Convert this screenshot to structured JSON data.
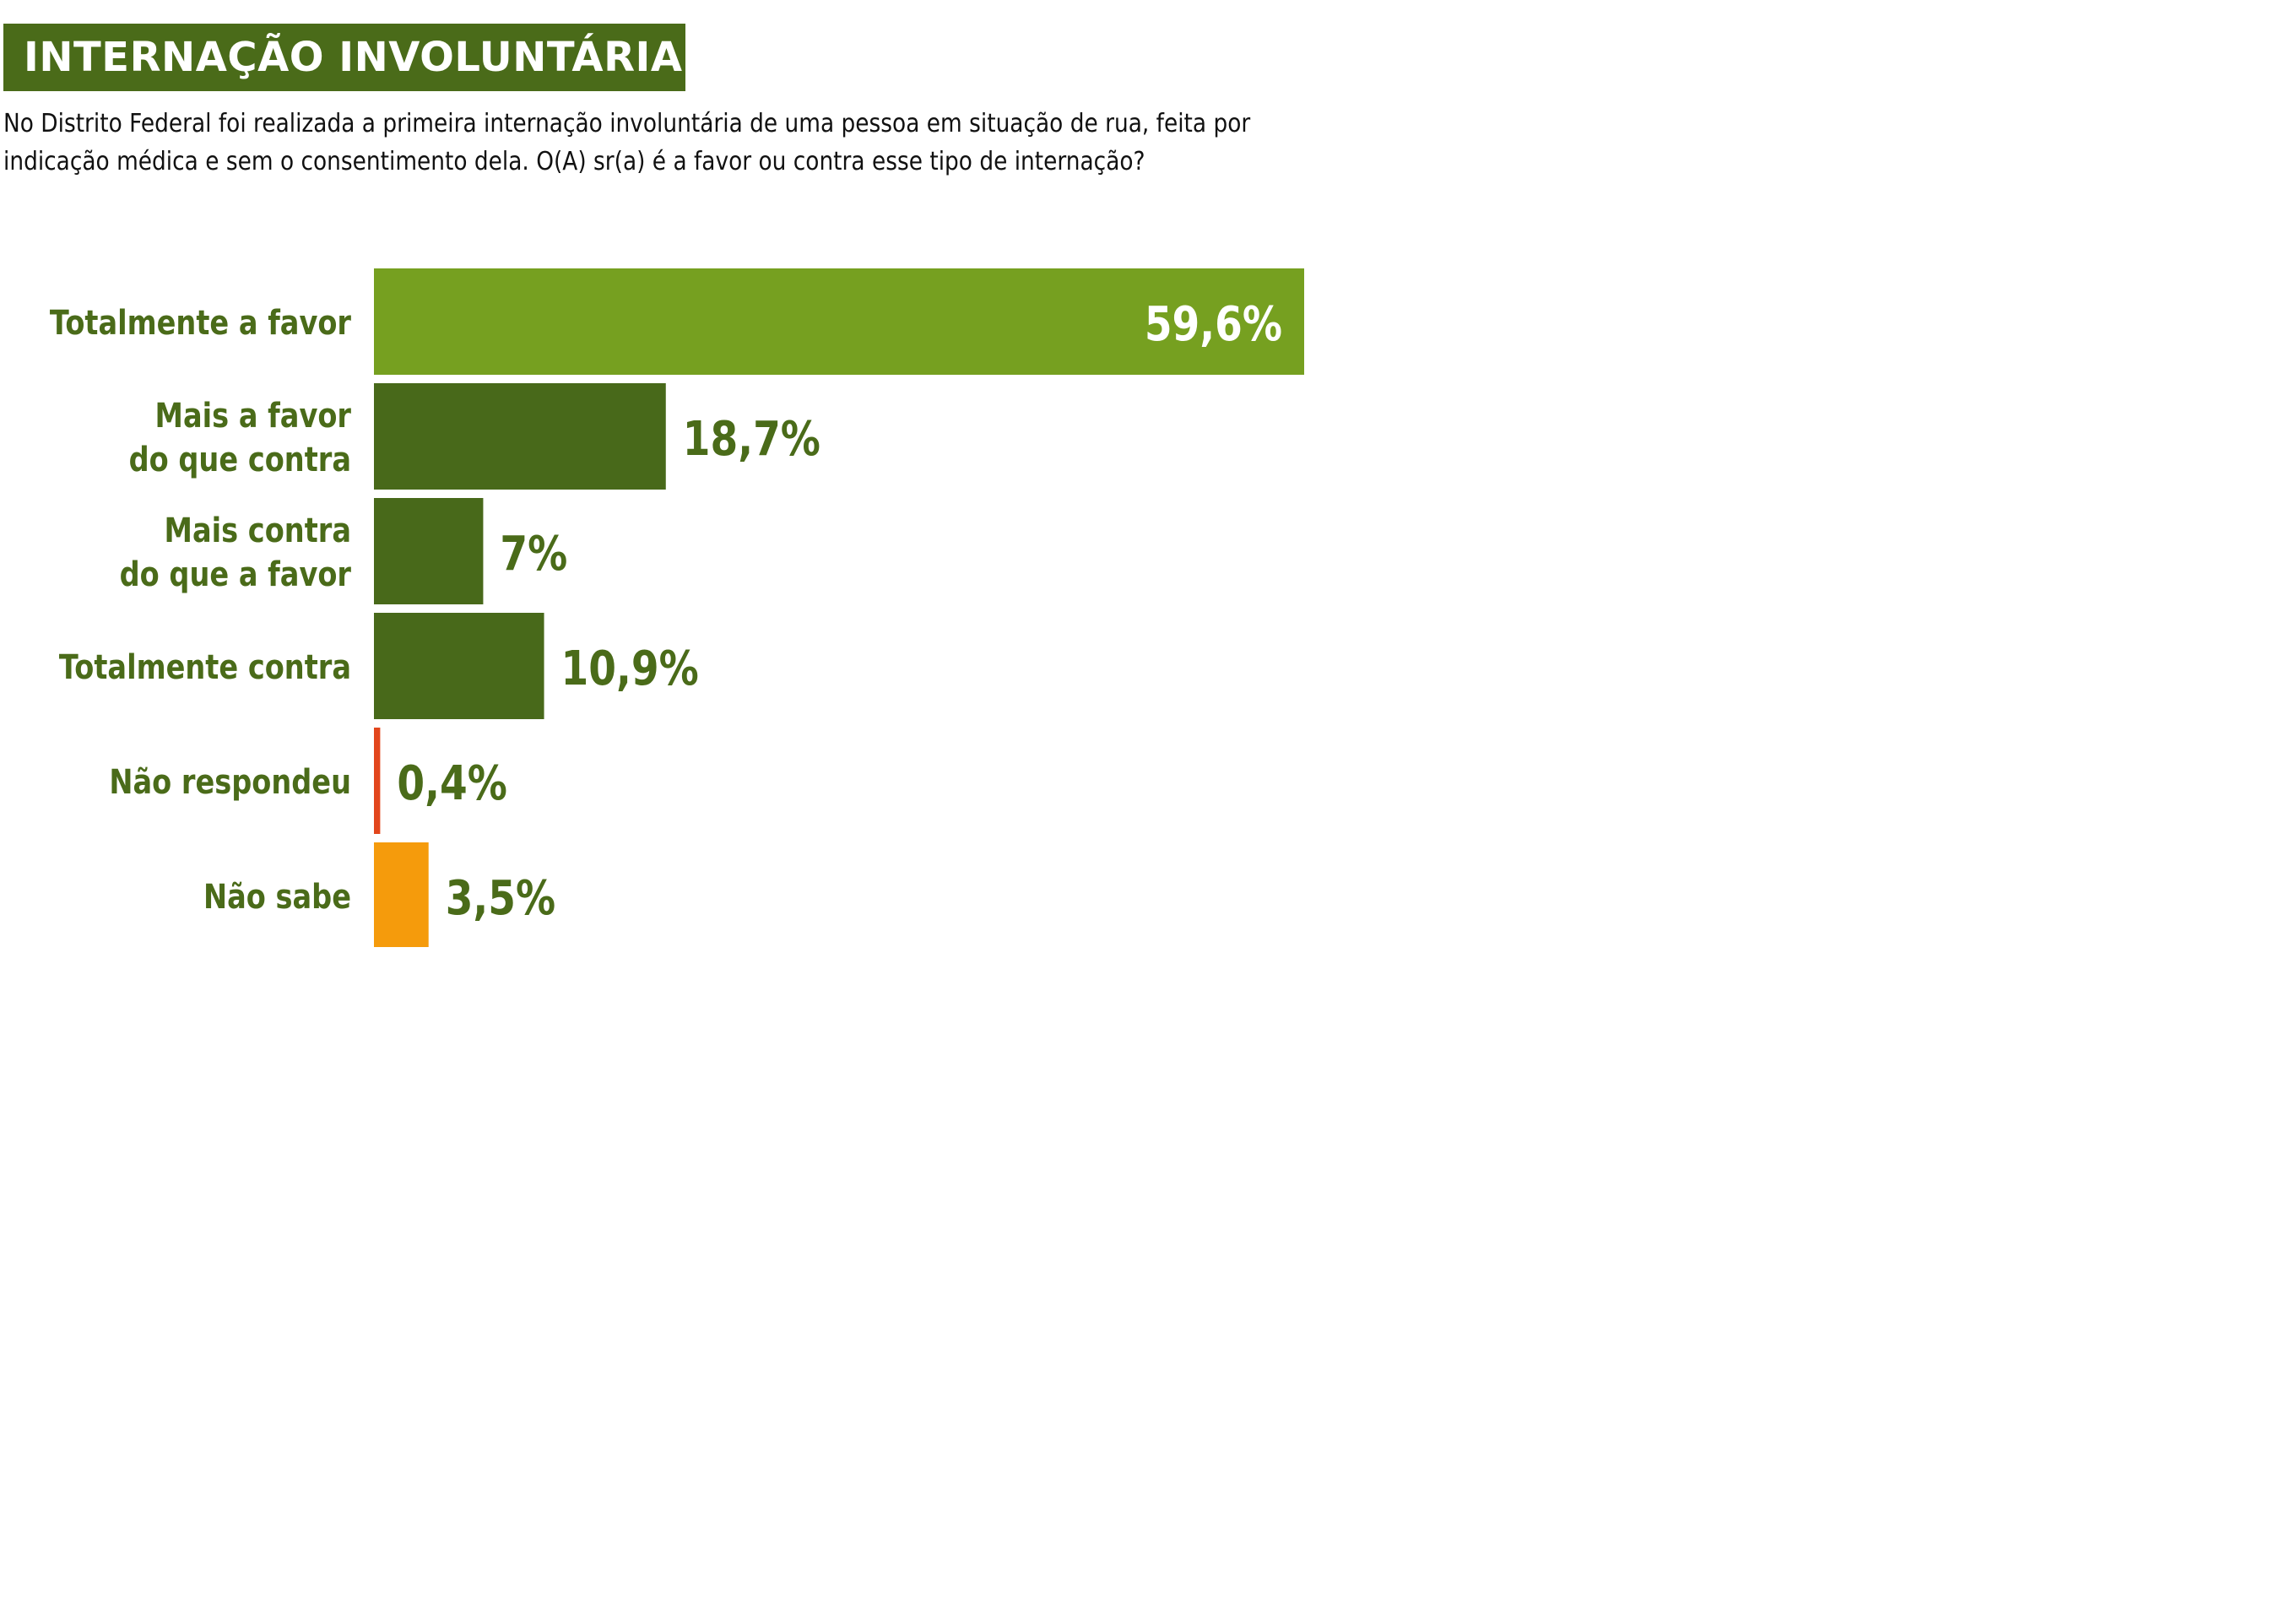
{
  "header": {
    "title": "INTERNAÇÃO INVOLUNTÁRIA",
    "question": "No Distrito Federal foi realizada a primeira internação involuntária de uma pessoa em situação de rua, feita por indicação médica e sem o consentimento dela. O(A) sr(a) é a favor ou contra esse tipo de internação?"
  },
  "colors": {
    "title_bg": "#4a6b19",
    "top_bar": "#76a020",
    "dark_green": "#48691a",
    "red": "#e2461c",
    "orange": "#f59b0c",
    "label_text": "#4a6b19",
    "white": "#ffffff"
  },
  "chart_data": {
    "type": "bar",
    "orientation": "horizontal",
    "title": "INTERNAÇÃO INVOLUNTÁRIA",
    "xlabel": "",
    "ylabel": "",
    "xlim": [
      0,
      59.6
    ],
    "grid": false,
    "legend": "none",
    "categories": [
      [
        "Totalmente a favor"
      ],
      [
        "Mais a favor",
        "do que contra"
      ],
      [
        "Mais contra",
        "do que a favor"
      ],
      [
        "Totalmente contra"
      ],
      [
        "Não respondeu"
      ],
      [
        "Não sabe"
      ]
    ],
    "values": [
      59.6,
      18.7,
      7,
      10.9,
      0.4,
      3.5
    ],
    "value_labels": [
      "59,6%",
      "18,7%",
      "7%",
      "10,9%",
      "0,4%",
      "3,5%"
    ],
    "bar_colors": [
      "#76a020",
      "#48691a",
      "#48691a",
      "#48691a",
      "#e2461c",
      "#f59b0c"
    ]
  }
}
